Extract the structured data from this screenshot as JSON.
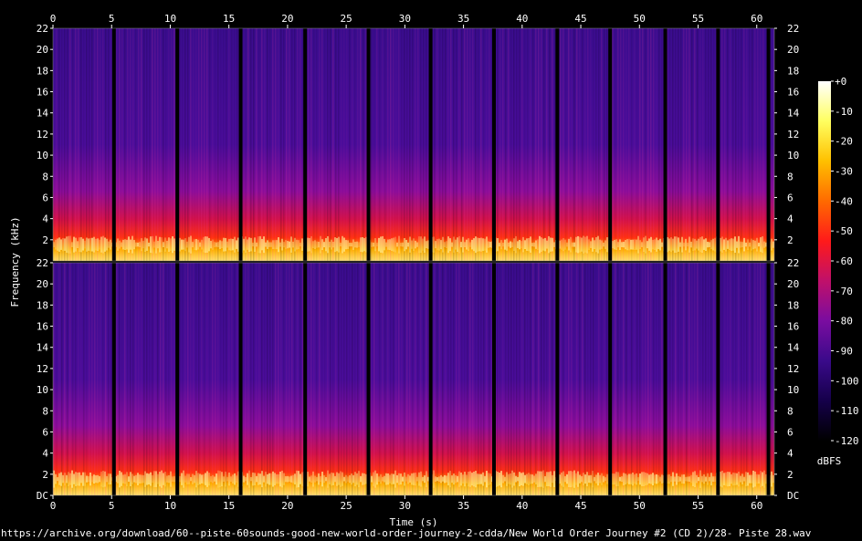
{
  "chart_data": {
    "type": "heatmap",
    "xlabel": "Time (s)",
    "ylabel": "Frequency (kHz)",
    "xlim": [
      0,
      61.5
    ],
    "x_ticks": [
      "0",
      "5",
      "10",
      "15",
      "20",
      "25",
      "30",
      "35",
      "40",
      "45",
      "50",
      "55",
      "60"
    ],
    "ylim": [
      0,
      22
    ],
    "y_ticks": [
      "DC",
      "2",
      "4",
      "6",
      "8",
      "10",
      "12",
      "14",
      "16",
      "18",
      "20",
      "22"
    ],
    "channels": 2,
    "track_boundaries_s": [
      5.2,
      10.6,
      16.0,
      21.5,
      26.9,
      32.2,
      37.6,
      43.0,
      47.5,
      52.2,
      56.7,
      61.0
    ],
    "colorbar": {
      "label": "dBFS",
      "ticks": [
        "+0",
        "-10",
        "-20",
        "-30",
        "-40",
        "-50",
        "-60",
        "-70",
        "-80",
        "-90",
        "-100",
        "-110",
        "-120"
      ],
      "range_db": [
        -120,
        0
      ],
      "colors": [
        "#000000",
        "#15004a",
        "#3a0a8a",
        "#7a0ca0",
        "#c0106a",
        "#ff1a1a",
        "#ff6a00",
        "#ffc000",
        "#ffff60",
        "#ffffff"
      ]
    }
  },
  "footer": {
    "source": "https://archive.org/download/60--piste-60sounds-good-new-world-order-journey-2-cdda/New World Order Journey #2 (CD 2)/28- Piste 28.wav"
  }
}
